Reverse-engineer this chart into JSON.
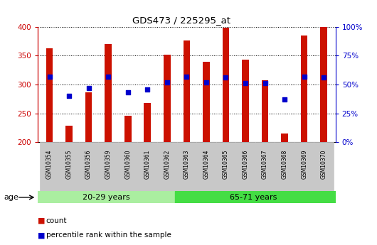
{
  "title": "GDS473 / 225295_at",
  "samples": [
    "GSM10354",
    "GSM10355",
    "GSM10356",
    "GSM10359",
    "GSM10360",
    "GSM10361",
    "GSM10362",
    "GSM10363",
    "GSM10364",
    "GSM10365",
    "GSM10366",
    "GSM10367",
    "GSM10368",
    "GSM10369",
    "GSM10370"
  ],
  "counts": [
    363,
    229,
    286,
    370,
    246,
    268,
    352,
    376,
    339,
    399,
    343,
    307,
    215,
    385,
    400
  ],
  "percentile_ranks_pct": [
    57,
    40,
    47,
    57,
    43,
    46,
    52,
    57,
    52,
    56,
    51,
    51,
    37,
    57,
    56
  ],
  "group1_label": "20-29 years",
  "group2_label": "65-71 years",
  "group1_count": 7,
  "group2_count": 8,
  "ymin": 200,
  "ymax": 400,
  "yticks": [
    200,
    250,
    300,
    350,
    400
  ],
  "right_yticks": [
    0,
    25,
    50,
    75,
    100
  ],
  "right_yticklabels": [
    "0%",
    "25%",
    "50%",
    "75%",
    "100%"
  ],
  "bar_color": "#CC1100",
  "dot_color": "#0000CC",
  "group1_bg": "#AAEEA0",
  "group2_bg": "#44DD44",
  "tick_bg": "#C8C8C8",
  "age_label": "age",
  "legend_count_label": "count",
  "legend_pct_label": "percentile rank within the sample",
  "axis_color_left": "#CC0000",
  "axis_color_right": "#0000CC",
  "plot_bg": "#FFFFFF",
  "bar_width": 0.35
}
